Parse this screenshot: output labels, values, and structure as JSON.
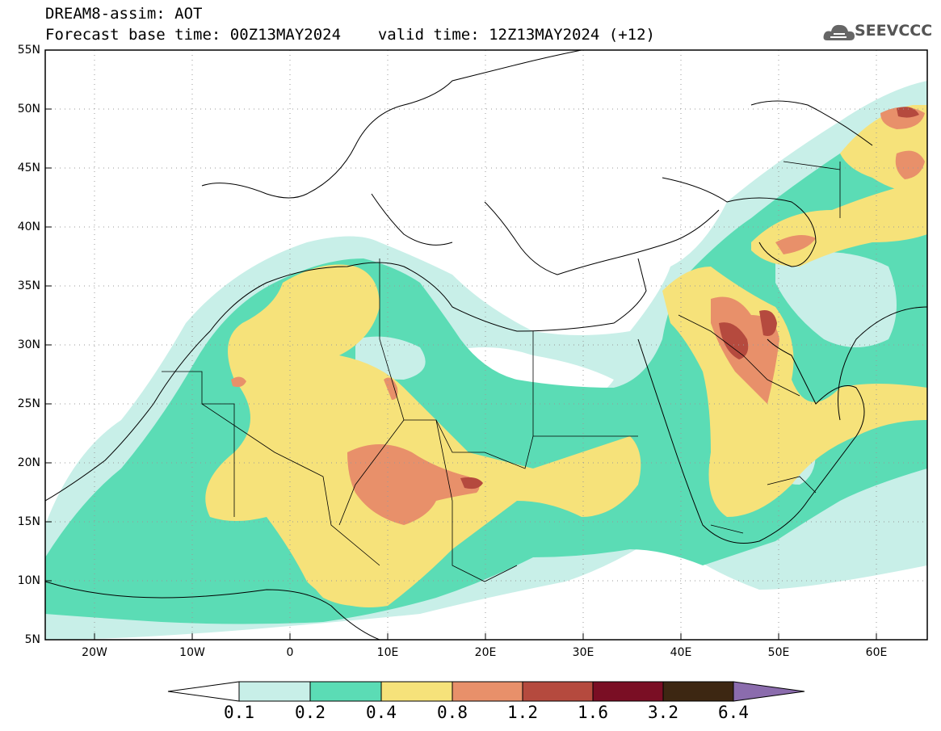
{
  "header": {
    "title": "DREAM8-assim: AOT",
    "base_time_label": "Forecast base time: 00Z13MAY2024",
    "valid_time_label": "valid time: 12Z13MAY2024 (+12)"
  },
  "logo": {
    "text": "SEEVCCC",
    "icon": "cloud-logo-icon"
  },
  "map": {
    "lat_labels": [
      "55N",
      "50N",
      "45N",
      "40N",
      "35N",
      "30N",
      "25N",
      "20N",
      "15N",
      "10N",
      "5N"
    ],
    "lon_labels": [
      "20W",
      "10W",
      "0",
      "10E",
      "20E",
      "30E",
      "40E",
      "50E",
      "60E"
    ],
    "lat_range": [
      5,
      55
    ],
    "lon_range": [
      -25,
      65
    ]
  },
  "colorbar": {
    "labels": [
      "0.1",
      "0.2",
      "0.4",
      "0.8",
      "1.2",
      "1.6",
      "3.2",
      "6.4"
    ],
    "colors": [
      "#ffffff",
      "#c8efe8",
      "#5bdcb5",
      "#f6e27a",
      "#e8906a",
      "#b54a3e",
      "#7a0e24",
      "#3d2712",
      "#8b6cad"
    ]
  }
}
